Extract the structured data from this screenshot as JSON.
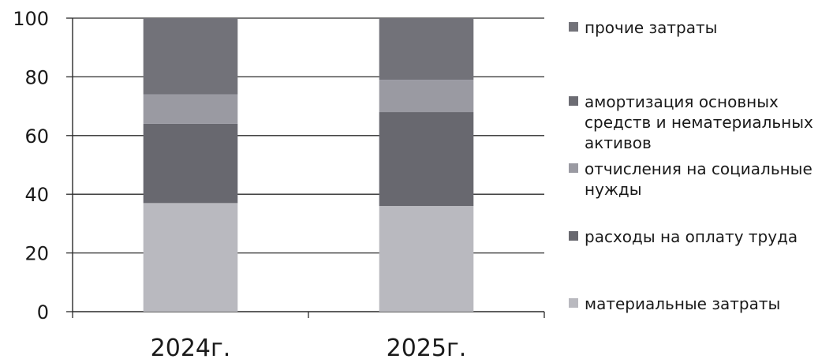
{
  "chart_data": {
    "type": "bar",
    "stacked": true,
    "categories": [
      "2024г.",
      "2025г."
    ],
    "series": [
      {
        "name": "материальные затраты",
        "values": [
          37,
          36
        ],
        "color": "#b9b9bf"
      },
      {
        "name": "расходы на оплату труда",
        "values": [
          27,
          32
        ],
        "color": "#68686f"
      },
      {
        "name": "отчисления на социальные нужды",
        "values": [
          10,
          11
        ],
        "color": "#9a9aa2"
      },
      {
        "name": "амортизация основных средств и нематериальных активов",
        "values": [
          0,
          0
        ],
        "color": "#6c6c73"
      },
      {
        "name": "прочие затраты",
        "values": [
          26,
          21
        ],
        "color": "#727279"
      }
    ],
    "legend_order": [
      4,
      3,
      2,
      1,
      0
    ],
    "legend_lines": [
      [
        "прочие затраты"
      ],
      [
        "амортизация основных",
        "средств и нематериальных",
        "активов"
      ],
      [
        "отчисления на социальные",
        "нужды"
      ],
      [
        "расходы на оплату труда"
      ],
      [
        "материальные затраты"
      ]
    ],
    "yticks": [
      "0",
      "20",
      "40",
      "60",
      "80",
      "100"
    ],
    "ylim": [
      0,
      100
    ],
    "grid": true,
    "legend_position": "right"
  }
}
